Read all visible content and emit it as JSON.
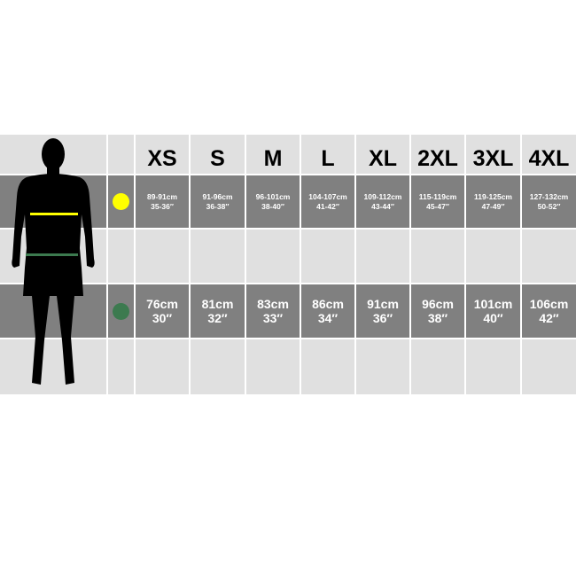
{
  "sizes": [
    "XS",
    "S",
    "M",
    "L",
    "XL",
    "2XL",
    "3XL",
    "4XL"
  ],
  "chest": {
    "marker_color": "#ffff00",
    "cm": [
      "89-91cm",
      "91-96cm",
      "96-101cm",
      "104-107cm",
      "109-112cm",
      "115-119cm",
      "119-125cm",
      "127-132cm"
    ],
    "in": [
      "35-36″",
      "36-38″",
      "38-40″",
      "41-42″",
      "43-44″",
      "45-47″",
      "47-49″",
      "50-52″"
    ]
  },
  "waist": {
    "marker_color": "#3c7a4f",
    "cm": [
      "76cm",
      "81cm",
      "83cm",
      "86cm",
      "91cm",
      "96cm",
      "101cm",
      "106cm"
    ],
    "in": [
      "30″",
      "32″",
      "33″",
      "34″",
      "36″",
      "38″",
      "40″",
      "42″"
    ]
  },
  "colors": {
    "light_row": "#e0e0e0",
    "dark_row": "#808080"
  }
}
